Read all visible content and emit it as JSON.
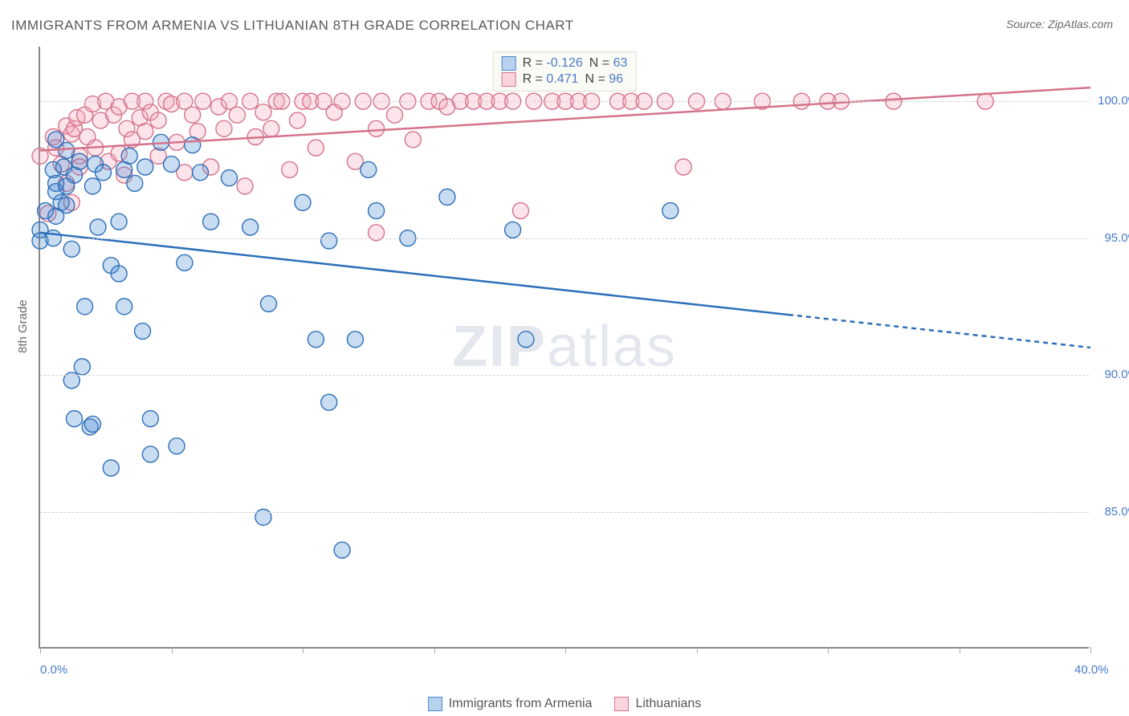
{
  "title": "IMMIGRANTS FROM ARMENIA VS LITHUANIAN 8TH GRADE CORRELATION CHART",
  "source_label": "Source: ZipAtlas.com",
  "watermark": {
    "bold": "ZIP",
    "light": "atlas"
  },
  "chart": {
    "type": "scatter",
    "background_color": "#ffffff",
    "grid_color": "#d0d0d0",
    "axis_color": "#888888",
    "xlim": [
      0,
      40
    ],
    "ylim": [
      80,
      102
    ],
    "x_ticks": [
      0,
      5,
      10,
      15,
      20,
      25,
      30,
      35,
      40
    ],
    "x_tick_labels": {
      "0": "0.0%",
      "40": "40.0%"
    },
    "y_grid": [
      85,
      90,
      95,
      100
    ],
    "y_tick_labels": {
      "85": "85.0%",
      "90": "90.0%",
      "95": "95.0%",
      "100": "100.0%"
    },
    "y_axis_label": "8th Grade",
    "y_tick_label_color": "#4a7bc8",
    "x_tick_label_color": "#4a7bc8",
    "label_fontsize": 15,
    "title_fontsize": 17,
    "marker_radius": 10,
    "marker_stroke_width": 1.4,
    "marker_fill_opacity": 0.3,
    "trendline_width": 2.5,
    "series": [
      {
        "name": "Immigrants from Armenia",
        "color": "#4a8ad4",
        "stroke_color": "#2d6fb8",
        "R": "-0.126",
        "N": "63",
        "trend": {
          "x1": 0,
          "y1": 95.2,
          "x2": 28.5,
          "y2": 92.2,
          "dash_x": 40,
          "dash_y": 91.0
        },
        "points": [
          [
            0.0,
            95.3
          ],
          [
            0.0,
            94.9
          ],
          [
            0.2,
            96.0
          ],
          [
            0.5,
            95.0
          ],
          [
            0.5,
            97.5
          ],
          [
            0.6,
            97.0
          ],
          [
            0.6,
            98.6
          ],
          [
            0.6,
            96.7
          ],
          [
            0.6,
            95.8
          ],
          [
            0.8,
            96.3
          ],
          [
            0.9,
            97.6
          ],
          [
            1.0,
            98.2
          ],
          [
            1.0,
            96.2
          ],
          [
            1.0,
            96.9
          ],
          [
            1.2,
            94.6
          ],
          [
            1.2,
            89.8
          ],
          [
            1.3,
            88.4
          ],
          [
            1.3,
            97.3
          ],
          [
            1.5,
            97.8
          ],
          [
            1.6,
            90.3
          ],
          [
            1.7,
            92.5
          ],
          [
            1.9,
            88.1
          ],
          [
            2.0,
            96.9
          ],
          [
            2.0,
            88.2
          ],
          [
            2.1,
            97.7
          ],
          [
            2.2,
            95.4
          ],
          [
            2.4,
            97.4
          ],
          [
            2.7,
            94.0
          ],
          [
            2.7,
            86.6
          ],
          [
            3.0,
            93.7
          ],
          [
            3.0,
            95.6
          ],
          [
            3.2,
            97.5
          ],
          [
            3.2,
            92.5
          ],
          [
            3.4,
            98.0
          ],
          [
            3.6,
            97.0
          ],
          [
            3.9,
            91.6
          ],
          [
            4.0,
            97.6
          ],
          [
            4.2,
            88.4
          ],
          [
            4.2,
            87.1
          ],
          [
            4.6,
            98.5
          ],
          [
            5.0,
            97.7
          ],
          [
            5.2,
            87.4
          ],
          [
            5.5,
            94.1
          ],
          [
            5.8,
            98.4
          ],
          [
            6.1,
            97.4
          ],
          [
            6.5,
            95.6
          ],
          [
            7.2,
            97.2
          ],
          [
            8.0,
            95.4
          ],
          [
            8.5,
            84.8
          ],
          [
            8.7,
            92.6
          ],
          [
            10.0,
            96.3
          ],
          [
            10.5,
            91.3
          ],
          [
            11.0,
            89.0
          ],
          [
            11.0,
            94.9
          ],
          [
            11.5,
            83.6
          ],
          [
            12.0,
            91.3
          ],
          [
            12.5,
            97.5
          ],
          [
            12.8,
            96.0
          ],
          [
            14.0,
            95.0
          ],
          [
            15.5,
            96.5
          ],
          [
            18.0,
            95.3
          ],
          [
            18.5,
            91.3
          ],
          [
            24.0,
            96.0
          ]
        ]
      },
      {
        "name": "Lithuanians",
        "color": "#f4a6b8",
        "stroke_color": "#d4738a",
        "R": "0.471",
        "N": "96",
        "trend": {
          "x1": 0,
          "y1": 98.2,
          "x2": 40,
          "y2": 100.5
        },
        "points": [
          [
            0.0,
            98.0
          ],
          [
            0.3,
            95.9
          ],
          [
            0.5,
            98.7
          ],
          [
            0.6,
            98.3
          ],
          [
            0.8,
            97.7
          ],
          [
            1.0,
            99.1
          ],
          [
            1.0,
            97.0
          ],
          [
            1.2,
            98.8
          ],
          [
            1.2,
            96.3
          ],
          [
            1.3,
            99.0
          ],
          [
            1.4,
            99.4
          ],
          [
            1.5,
            98.0
          ],
          [
            1.5,
            97.6
          ],
          [
            1.7,
            99.5
          ],
          [
            1.8,
            98.7
          ],
          [
            2.0,
            99.9
          ],
          [
            2.1,
            98.3
          ],
          [
            2.3,
            99.3
          ],
          [
            2.5,
            100.0
          ],
          [
            2.6,
            97.8
          ],
          [
            2.8,
            99.5
          ],
          [
            3.0,
            98.1
          ],
          [
            3.0,
            99.8
          ],
          [
            3.2,
            97.3
          ],
          [
            3.3,
            99.0
          ],
          [
            3.5,
            100.0
          ],
          [
            3.5,
            98.6
          ],
          [
            3.8,
            99.4
          ],
          [
            4.0,
            98.9
          ],
          [
            4.0,
            100.0
          ],
          [
            4.2,
            99.6
          ],
          [
            4.5,
            98.0
          ],
          [
            4.5,
            99.3
          ],
          [
            4.8,
            100.0
          ],
          [
            5.0,
            99.9
          ],
          [
            5.2,
            98.5
          ],
          [
            5.5,
            97.4
          ],
          [
            5.5,
            100.0
          ],
          [
            5.8,
            99.5
          ],
          [
            6.0,
            98.9
          ],
          [
            6.2,
            100.0
          ],
          [
            6.5,
            97.6
          ],
          [
            6.8,
            99.8
          ],
          [
            7.0,
            99.0
          ],
          [
            7.2,
            100.0
          ],
          [
            7.5,
            99.5
          ],
          [
            7.8,
            96.9
          ],
          [
            8.0,
            100.0
          ],
          [
            8.2,
            98.7
          ],
          [
            8.5,
            99.6
          ],
          [
            8.8,
            99.0
          ],
          [
            9.0,
            100.0
          ],
          [
            9.2,
            100.0
          ],
          [
            9.5,
            97.5
          ],
          [
            9.8,
            99.3
          ],
          [
            10.0,
            100.0
          ],
          [
            10.3,
            100.0
          ],
          [
            10.5,
            98.3
          ],
          [
            10.8,
            100.0
          ],
          [
            11.2,
            99.6
          ],
          [
            11.5,
            100.0
          ],
          [
            12.0,
            97.8
          ],
          [
            12.3,
            100.0
          ],
          [
            12.8,
            99.0
          ],
          [
            12.8,
            95.2
          ],
          [
            13.0,
            100.0
          ],
          [
            13.5,
            99.5
          ],
          [
            14.0,
            100.0
          ],
          [
            14.2,
            98.6
          ],
          [
            14.8,
            100.0
          ],
          [
            15.2,
            100.0
          ],
          [
            15.5,
            99.8
          ],
          [
            16.0,
            100.0
          ],
          [
            16.5,
            100.0
          ],
          [
            17.0,
            100.0
          ],
          [
            17.5,
            100.0
          ],
          [
            18.0,
            100.0
          ],
          [
            18.3,
            96.0
          ],
          [
            18.8,
            100.0
          ],
          [
            19.5,
            100.0
          ],
          [
            20.0,
            100.0
          ],
          [
            20.5,
            100.0
          ],
          [
            21.0,
            100.0
          ],
          [
            22.0,
            100.0
          ],
          [
            22.5,
            100.0
          ],
          [
            23.0,
            100.0
          ],
          [
            23.8,
            100.0
          ],
          [
            24.5,
            97.6
          ],
          [
            25.0,
            100.0
          ],
          [
            26.0,
            100.0
          ],
          [
            27.5,
            100.0
          ],
          [
            29.0,
            100.0
          ],
          [
            30.5,
            100.0
          ],
          [
            32.5,
            100.0
          ],
          [
            36.0,
            100.0
          ],
          [
            30.0,
            100.0
          ]
        ]
      }
    ]
  },
  "legend_center": {
    "rows": [
      {
        "swatch_fill": "#b8d1ed",
        "swatch_stroke": "#4a8ad4",
        "r_label": "R =",
        "r_val": "-0.126",
        "n_label": "N =",
        "n_val": "63"
      },
      {
        "swatch_fill": "#fbd5de",
        "swatch_stroke": "#d4738a",
        "r_label": "R =",
        "r_val": "0.471",
        "n_label": "N =",
        "n_val": "96"
      }
    ]
  },
  "bottom_legend": {
    "items": [
      {
        "swatch_fill": "#b8d1ed",
        "swatch_stroke": "#4a8ad4",
        "label": "Immigrants from Armenia"
      },
      {
        "swatch_fill": "#fbd5de",
        "swatch_stroke": "#d4738a",
        "label": "Lithuanians"
      }
    ]
  }
}
